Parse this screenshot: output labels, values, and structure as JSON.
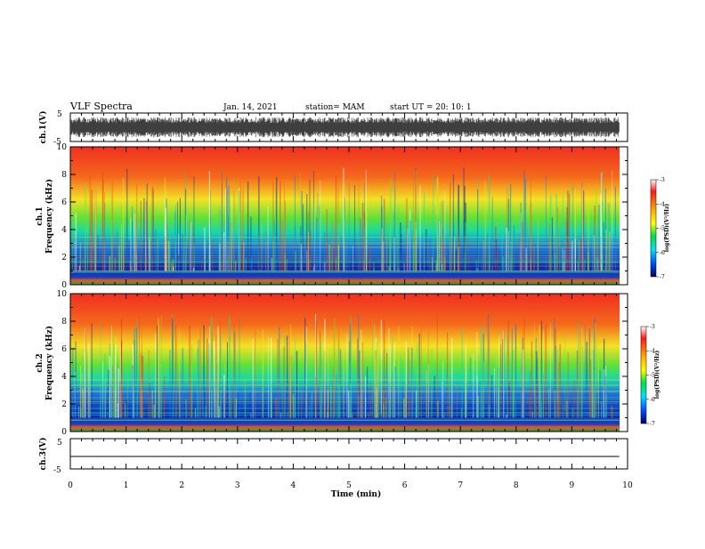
{
  "header": {
    "title": "VLF Spectra",
    "date": "Jan. 14, 2021",
    "station": "station= MAM",
    "start_ut": "start  UT =   20: 10: 1"
  },
  "colors": {
    "spectrogram_low": "#0a1aa8",
    "spectrogram_mid": "#16d860",
    "spectrogram_high": "#f23a1a",
    "trace": "#000000"
  },
  "chart_data": [
    {
      "type": "line",
      "name": "ch1-waveform",
      "ylabel": "ch.1(V)",
      "ylim": [
        -5,
        5
      ],
      "yticks": [
        "5",
        "-5"
      ],
      "xlim": [
        0,
        10
      ],
      "description_values": "dense noisy waveform, amplitude roughly -3.5 to 3.5 V over 0 to 9.85 min"
    },
    {
      "type": "heatmap",
      "name": "ch1-spectrogram",
      "ylabel": "ch.1",
      "ylabel2": "Frequency (kHz)",
      "ylim": [
        0,
        10
      ],
      "yticks": [
        "0",
        "2",
        "4",
        "6",
        "8",
        "10"
      ],
      "xlim": [
        0,
        10
      ],
      "data_extent_min": 9.85,
      "colorbar": {
        "label": "log(PSD)(V²/Hz)",
        "range": [
          -7,
          -3
        ],
        "ticks": [
          "-3",
          "-4",
          "-5",
          "-6",
          "-7"
        ]
      }
    },
    {
      "type": "heatmap",
      "name": "ch2-spectrogram",
      "ylabel": "ch.2",
      "ylabel2": "Frequency (kHz)",
      "ylim": [
        0,
        10
      ],
      "yticks": [
        "0",
        "2",
        "4",
        "6",
        "8",
        "10"
      ],
      "xlim": [
        0,
        10
      ],
      "data_extent_min": 9.85,
      "colorbar": {
        "label": "log(PSD)(V²/Hz)",
        "range": [
          -7,
          -3
        ],
        "ticks": [
          "-3",
          "-4",
          "-5",
          "-6",
          "-7"
        ]
      }
    },
    {
      "type": "line",
      "name": "ch3-waveform",
      "ylabel": "ch.3(V)",
      "ylim": [
        -5,
        5
      ],
      "yticks": [
        "5",
        "-5"
      ],
      "xlim": [
        0,
        10
      ],
      "x": [
        0,
        9.85
      ],
      "y": [
        0,
        0
      ]
    }
  ],
  "xaxis": {
    "label": "Time (min)",
    "ticks": [
      "0",
      "1",
      "2",
      "3",
      "4",
      "5",
      "6",
      "7",
      "8",
      "9",
      "10"
    ]
  }
}
